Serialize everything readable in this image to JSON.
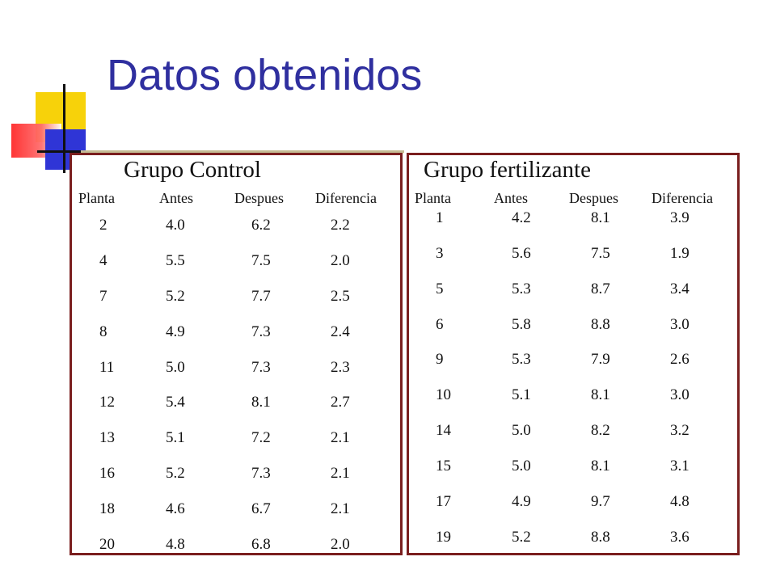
{
  "title": "Datos obtenidos",
  "colors": {
    "title": "#2f2f9f",
    "panel_border": "#7a1e1e",
    "text": "#111111",
    "deco_yellow": "#f7d20a",
    "deco_red": "#ff2a2a",
    "deco_blue": "#2f35d6"
  },
  "control": {
    "title": "Grupo Control",
    "headers": {
      "planta": "Planta",
      "antes": "Antes",
      "despues": "Despues",
      "diferencia": "Diferencia"
    },
    "rows": [
      {
        "planta": "2",
        "antes": "4.0",
        "despues": "6.2",
        "diferencia": "2.2"
      },
      {
        "planta": "4",
        "antes": "5.5",
        "despues": "7.5",
        "diferencia": "2.0"
      },
      {
        "planta": "7",
        "antes": "5.2",
        "despues": "7.7",
        "diferencia": "2.5"
      },
      {
        "planta": "8",
        "antes": "4.9",
        "despues": "7.3",
        "diferencia": "2.4"
      },
      {
        "planta": "11",
        "antes": "5.0",
        "despues": "7.3",
        "diferencia": "2.3"
      },
      {
        "planta": "12",
        "antes": "5.4",
        "despues": "8.1",
        "diferencia": "2.7"
      },
      {
        "planta": "13",
        "antes": "5.1",
        "despues": "7.2",
        "diferencia": "2.1"
      },
      {
        "planta": "16",
        "antes": "5.2",
        "despues": "7.3",
        "diferencia": "2.1"
      },
      {
        "planta": "18",
        "antes": "4.6",
        "despues": "6.7",
        "diferencia": "2.1"
      },
      {
        "planta": "20",
        "antes": "4.8",
        "despues": "6.8",
        "diferencia": "2.0"
      }
    ]
  },
  "fertilizante": {
    "title": "Grupo fertilizante",
    "headers": {
      "planta": "Planta",
      "antes": "Antes",
      "despues": "Despues",
      "diferencia": "Diferencia"
    },
    "rows": [
      {
        "planta": "1",
        "antes": "4.2",
        "despues": "8.1",
        "diferencia": "3.9"
      },
      {
        "planta": "3",
        "antes": "5.6",
        "despues": "7.5",
        "diferencia": "1.9"
      },
      {
        "planta": "5",
        "antes": "5.3",
        "despues": "8.7",
        "diferencia": "3.4"
      },
      {
        "planta": "6",
        "antes": "5.8",
        "despues": "8.8",
        "diferencia": "3.0"
      },
      {
        "planta": "9",
        "antes": "5.3",
        "despues": "7.9",
        "diferencia": "2.6"
      },
      {
        "planta": "10",
        "antes": "5.1",
        "despues": "8.1",
        "diferencia": "3.0"
      },
      {
        "planta": "14",
        "antes": "5.0",
        "despues": "8.2",
        "diferencia": "3.2"
      },
      {
        "planta": "15",
        "antes": "5.0",
        "despues": "8.1",
        "diferencia": "3.1"
      },
      {
        "planta": "17",
        "antes": "4.9",
        "despues": "9.7",
        "diferencia": "4.8"
      },
      {
        "planta": "19",
        "antes": "5.2",
        "despues": "8.8",
        "diferencia": "3.6"
      }
    ]
  }
}
